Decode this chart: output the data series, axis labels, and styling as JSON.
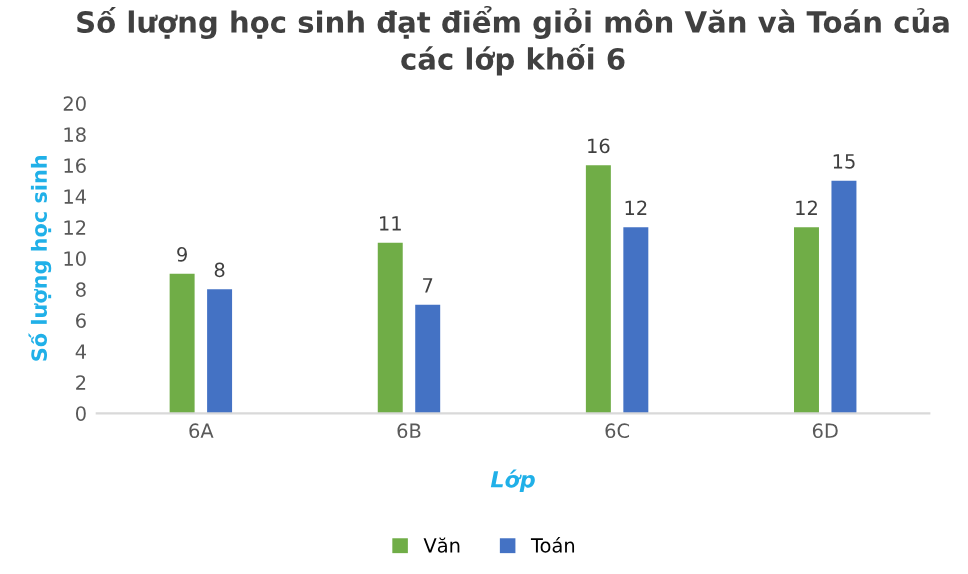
{
  "chart_data": {
    "type": "bar",
    "title": "Số lượng học sinh đạt điểm giỏi môn Văn và Toán của các lớp khối 6",
    "xlabel": "Lớp",
    "ylabel": "Số lượng học sinh",
    "categories": [
      "6A",
      "6B",
      "6C",
      "6D"
    ],
    "series": [
      {
        "name": "Văn",
        "color": "#70ad47",
        "values": [
          9,
          11,
          16,
          12
        ]
      },
      {
        "name": "Toán",
        "color": "#4472c4",
        "values": [
          8,
          7,
          12,
          15
        ]
      }
    ],
    "ylim": [
      0,
      20
    ],
    "yticks": [
      0,
      2,
      4,
      6,
      8,
      10,
      12,
      14,
      16,
      18,
      20
    ],
    "data_labels": true,
    "grid": false,
    "legend": "bottom"
  }
}
